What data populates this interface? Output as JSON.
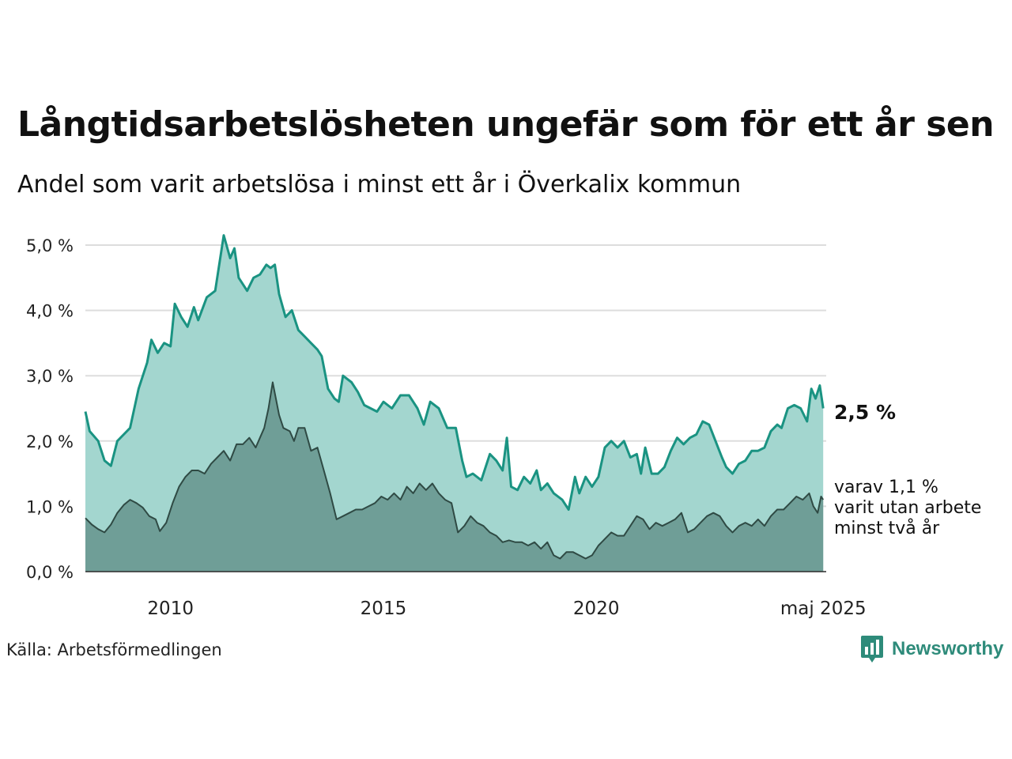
{
  "title": "Långtidsarbetslösheten ungefär som för ett år sen",
  "subtitle": "Andel som varit arbetslösa i minst ett år i Överkalix kommun",
  "source": "Källa: Arbetsförmedlingen",
  "brand": "Newsworthy",
  "colors": {
    "total_line": "#1a9382",
    "total_fill": "#a3d6cf",
    "long_line": "#2f4a44",
    "long_fill": "#6f9e97",
    "grid": "#dddddd",
    "brand": "#2e8b7a"
  },
  "chart_data": {
    "type": "area",
    "title": "Långtidsarbetslösheten ungefär som för ett år sen",
    "ylim": [
      0,
      5.0
    ],
    "xlim": [
      2008.0,
      2025.4
    ],
    "yticks": [
      0,
      1,
      2,
      3,
      4,
      5
    ],
    "ytick_labels": [
      "0,0 %",
      "1,0 %",
      "2,0 %",
      "3,0 %",
      "4,0 %",
      "5,0 %"
    ],
    "xticks": [
      2010,
      2015,
      2020,
      2025.33
    ],
    "xtick_labels": [
      "2010",
      "2015",
      "2020",
      "maj 2025"
    ],
    "grid": true,
    "end_label_main": "2,5 %",
    "end_label_sub": [
      "varav 1,1 %",
      "varit utan arbete",
      "minst två år"
    ],
    "series": [
      {
        "key": "total",
        "points": [
          [
            2008.0,
            2.45
          ],
          [
            2008.1,
            2.15
          ],
          [
            2008.3,
            2.0
          ],
          [
            2008.45,
            1.7
          ],
          [
            2008.6,
            1.62
          ],
          [
            2008.75,
            2.0
          ],
          [
            2008.9,
            2.1
          ],
          [
            2009.05,
            2.2
          ],
          [
            2009.25,
            2.8
          ],
          [
            2009.45,
            3.2
          ],
          [
            2009.55,
            3.55
          ],
          [
            2009.7,
            3.35
          ],
          [
            2009.85,
            3.5
          ],
          [
            2010.0,
            3.45
          ],
          [
            2010.1,
            4.1
          ],
          [
            2010.25,
            3.9
          ],
          [
            2010.4,
            3.75
          ],
          [
            2010.55,
            4.05
          ],
          [
            2010.65,
            3.85
          ],
          [
            2010.85,
            4.2
          ],
          [
            2011.05,
            4.3
          ],
          [
            2011.25,
            5.15
          ],
          [
            2011.4,
            4.8
          ],
          [
            2011.5,
            4.95
          ],
          [
            2011.6,
            4.5
          ],
          [
            2011.8,
            4.3
          ],
          [
            2011.95,
            4.5
          ],
          [
            2012.1,
            4.55
          ],
          [
            2012.25,
            4.7
          ],
          [
            2012.35,
            4.65
          ],
          [
            2012.45,
            4.7
          ],
          [
            2012.55,
            4.25
          ],
          [
            2012.7,
            3.9
          ],
          [
            2012.85,
            4.0
          ],
          [
            2013.0,
            3.7
          ],
          [
            2013.15,
            3.6
          ],
          [
            2013.3,
            3.5
          ],
          [
            2013.45,
            3.4
          ],
          [
            2013.55,
            3.3
          ],
          [
            2013.7,
            2.8
          ],
          [
            2013.85,
            2.65
          ],
          [
            2013.95,
            2.6
          ],
          [
            2014.05,
            3.0
          ],
          [
            2014.25,
            2.9
          ],
          [
            2014.4,
            2.75
          ],
          [
            2014.55,
            2.55
          ],
          [
            2014.7,
            2.5
          ],
          [
            2014.85,
            2.45
          ],
          [
            2015.0,
            2.6
          ],
          [
            2015.2,
            2.5
          ],
          [
            2015.4,
            2.7
          ],
          [
            2015.6,
            2.7
          ],
          [
            2015.8,
            2.5
          ],
          [
            2015.95,
            2.25
          ],
          [
            2016.1,
            2.6
          ],
          [
            2016.3,
            2.5
          ],
          [
            2016.5,
            2.2
          ],
          [
            2016.7,
            2.2
          ],
          [
            2016.85,
            1.7
          ],
          [
            2016.95,
            1.45
          ],
          [
            2017.1,
            1.5
          ],
          [
            2017.3,
            1.4
          ],
          [
            2017.5,
            1.8
          ],
          [
            2017.65,
            1.7
          ],
          [
            2017.8,
            1.55
          ],
          [
            2017.9,
            2.05
          ],
          [
            2018.0,
            1.3
          ],
          [
            2018.15,
            1.25
          ],
          [
            2018.3,
            1.45
          ],
          [
            2018.45,
            1.35
          ],
          [
            2018.6,
            1.55
          ],
          [
            2018.7,
            1.25
          ],
          [
            2018.85,
            1.35
          ],
          [
            2019.0,
            1.2
          ],
          [
            2019.2,
            1.1
          ],
          [
            2019.35,
            0.95
          ],
          [
            2019.5,
            1.45
          ],
          [
            2019.6,
            1.2
          ],
          [
            2019.75,
            1.45
          ],
          [
            2019.9,
            1.3
          ],
          [
            2020.05,
            1.45
          ],
          [
            2020.2,
            1.9
          ],
          [
            2020.35,
            2.0
          ],
          [
            2020.5,
            1.9
          ],
          [
            2020.65,
            2.0
          ],
          [
            2020.8,
            1.75
          ],
          [
            2020.95,
            1.8
          ],
          [
            2021.05,
            1.5
          ],
          [
            2021.15,
            1.9
          ],
          [
            2021.3,
            1.5
          ],
          [
            2021.45,
            1.5
          ],
          [
            2021.6,
            1.6
          ],
          [
            2021.75,
            1.85
          ],
          [
            2021.9,
            2.05
          ],
          [
            2022.05,
            1.95
          ],
          [
            2022.2,
            2.05
          ],
          [
            2022.35,
            2.1
          ],
          [
            2022.5,
            2.3
          ],
          [
            2022.65,
            2.25
          ],
          [
            2022.8,
            2.0
          ],
          [
            2022.95,
            1.75
          ],
          [
            2023.05,
            1.6
          ],
          [
            2023.2,
            1.5
          ],
          [
            2023.35,
            1.65
          ],
          [
            2023.5,
            1.7
          ],
          [
            2023.65,
            1.85
          ],
          [
            2023.8,
            1.85
          ],
          [
            2023.95,
            1.9
          ],
          [
            2024.1,
            2.15
          ],
          [
            2024.25,
            2.25
          ],
          [
            2024.35,
            2.2
          ],
          [
            2024.5,
            2.5
          ],
          [
            2024.65,
            2.55
          ],
          [
            2024.8,
            2.5
          ],
          [
            2024.95,
            2.3
          ],
          [
            2025.05,
            2.8
          ],
          [
            2025.15,
            2.65
          ],
          [
            2025.25,
            2.85
          ],
          [
            2025.33,
            2.5
          ]
        ]
      },
      {
        "key": "long",
        "points": [
          [
            2008.0,
            0.82
          ],
          [
            2008.15,
            0.72
          ],
          [
            2008.3,
            0.65
          ],
          [
            2008.45,
            0.6
          ],
          [
            2008.6,
            0.72
          ],
          [
            2008.75,
            0.9
          ],
          [
            2008.9,
            1.02
          ],
          [
            2009.05,
            1.1
          ],
          [
            2009.2,
            1.05
          ],
          [
            2009.35,
            0.98
          ],
          [
            2009.5,
            0.85
          ],
          [
            2009.65,
            0.8
          ],
          [
            2009.75,
            0.62
          ],
          [
            2009.9,
            0.75
          ],
          [
            2010.05,
            1.05
          ],
          [
            2010.2,
            1.3
          ],
          [
            2010.35,
            1.45
          ],
          [
            2010.5,
            1.55
          ],
          [
            2010.65,
            1.55
          ],
          [
            2010.8,
            1.5
          ],
          [
            2010.95,
            1.65
          ],
          [
            2011.1,
            1.75
          ],
          [
            2011.25,
            1.85
          ],
          [
            2011.4,
            1.7
          ],
          [
            2011.55,
            1.95
          ],
          [
            2011.7,
            1.95
          ],
          [
            2011.85,
            2.05
          ],
          [
            2012.0,
            1.9
          ],
          [
            2012.1,
            2.05
          ],
          [
            2012.2,
            2.2
          ],
          [
            2012.3,
            2.5
          ],
          [
            2012.4,
            2.9
          ],
          [
            2012.55,
            2.4
          ],
          [
            2012.65,
            2.2
          ],
          [
            2012.8,
            2.15
          ],
          [
            2012.9,
            2.0
          ],
          [
            2013.0,
            2.2
          ],
          [
            2013.15,
            2.2
          ],
          [
            2013.3,
            1.85
          ],
          [
            2013.45,
            1.9
          ],
          [
            2013.6,
            1.55
          ],
          [
            2013.75,
            1.2
          ],
          [
            2013.9,
            0.8
          ],
          [
            2014.05,
            0.85
          ],
          [
            2014.2,
            0.9
          ],
          [
            2014.35,
            0.95
          ],
          [
            2014.5,
            0.95
          ],
          [
            2014.65,
            1.0
          ],
          [
            2014.8,
            1.05
          ],
          [
            2014.95,
            1.15
          ],
          [
            2015.1,
            1.1
          ],
          [
            2015.25,
            1.2
          ],
          [
            2015.4,
            1.1
          ],
          [
            2015.55,
            1.3
          ],
          [
            2015.7,
            1.2
          ],
          [
            2015.85,
            1.35
          ],
          [
            2016.0,
            1.25
          ],
          [
            2016.15,
            1.35
          ],
          [
            2016.3,
            1.2
          ],
          [
            2016.45,
            1.1
          ],
          [
            2016.6,
            1.05
          ],
          [
            2016.75,
            0.6
          ],
          [
            2016.9,
            0.7
          ],
          [
            2017.05,
            0.85
          ],
          [
            2017.2,
            0.75
          ],
          [
            2017.35,
            0.7
          ],
          [
            2017.5,
            0.6
          ],
          [
            2017.65,
            0.55
          ],
          [
            2017.8,
            0.45
          ],
          [
            2017.95,
            0.48
          ],
          [
            2018.1,
            0.45
          ],
          [
            2018.25,
            0.45
          ],
          [
            2018.4,
            0.4
          ],
          [
            2018.55,
            0.45
          ],
          [
            2018.7,
            0.35
          ],
          [
            2018.85,
            0.45
          ],
          [
            2019.0,
            0.25
          ],
          [
            2019.15,
            0.2
          ],
          [
            2019.3,
            0.3
          ],
          [
            2019.45,
            0.3
          ],
          [
            2019.6,
            0.25
          ],
          [
            2019.75,
            0.2
          ],
          [
            2019.9,
            0.25
          ],
          [
            2020.05,
            0.4
          ],
          [
            2020.2,
            0.5
          ],
          [
            2020.35,
            0.6
          ],
          [
            2020.5,
            0.55
          ],
          [
            2020.65,
            0.55
          ],
          [
            2020.8,
            0.7
          ],
          [
            2020.95,
            0.85
          ],
          [
            2021.1,
            0.8
          ],
          [
            2021.25,
            0.65
          ],
          [
            2021.4,
            0.75
          ],
          [
            2021.55,
            0.7
          ],
          [
            2021.7,
            0.75
          ],
          [
            2021.85,
            0.8
          ],
          [
            2022.0,
            0.9
          ],
          [
            2022.15,
            0.6
          ],
          [
            2022.3,
            0.65
          ],
          [
            2022.45,
            0.75
          ],
          [
            2022.6,
            0.85
          ],
          [
            2022.75,
            0.9
          ],
          [
            2022.9,
            0.85
          ],
          [
            2023.05,
            0.7
          ],
          [
            2023.2,
            0.6
          ],
          [
            2023.35,
            0.7
          ],
          [
            2023.5,
            0.75
          ],
          [
            2023.65,
            0.7
          ],
          [
            2023.8,
            0.8
          ],
          [
            2023.95,
            0.7
          ],
          [
            2024.1,
            0.85
          ],
          [
            2024.25,
            0.95
          ],
          [
            2024.4,
            0.95
          ],
          [
            2024.55,
            1.05
          ],
          [
            2024.7,
            1.15
          ],
          [
            2024.85,
            1.1
          ],
          [
            2025.0,
            1.2
          ],
          [
            2025.1,
            1.0
          ],
          [
            2025.2,
            0.9
          ],
          [
            2025.28,
            1.15
          ],
          [
            2025.33,
            1.1
          ]
        ]
      }
    ]
  }
}
